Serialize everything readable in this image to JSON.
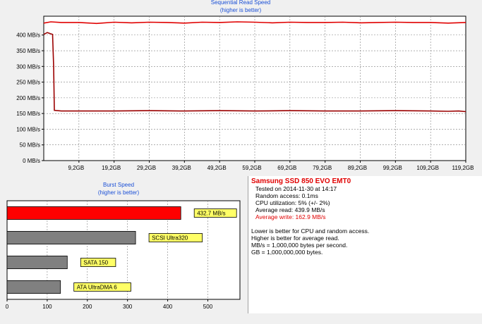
{
  "read_chart": {
    "title_line1": "Sequential Read Speed",
    "title_line2": "(higher is better)"
  },
  "burst_chart": {
    "title_line1": "Burst Speed",
    "title_line2": "(higher is better)"
  },
  "info": {
    "drive_name": "Samsung SSD 850 EVO EMT0",
    "tested_on": "Tested on 2014-11-30 at 14:17",
    "random_access": "Random access: 0.1ms",
    "cpu_utilization": "CPU utilization: 5% (+/- 2%)",
    "average_read": "Average read: 439.9 MB/s",
    "average_write": "Average write: 162.9 MB/s",
    "note1": "Lower is better for CPU and random access.",
    "note2": "Higher is better for average read.",
    "note3": "MB/s = 1,000,000 bytes per second.",
    "note4": "GB = 1,000,000,000 bytes."
  },
  "colors": {
    "read_line": "#e00000",
    "write_line": "#9b0000",
    "burst_bar": "#ff0000",
    "ref_bar": "#808080",
    "label_bg": "#ffff66"
  },
  "chart_data": [
    {
      "type": "line",
      "title": "Sequential Read Speed",
      "subtitle": "(higher is better)",
      "y_tick_labels": [
        "0 MB/s",
        "50 MB/s",
        "100 MB/s",
        "150 MB/s",
        "200 MB/s",
        "250 MB/s",
        "300 MB/s",
        "350 MB/s",
        "400 MB/s"
      ],
      "x_tick_labels": [
        "9,2GB",
        "19,2GB",
        "29,2GB",
        "39,2GB",
        "49,2GB",
        "59,2GB",
        "69,2GB",
        "79,2GB",
        "89,2GB",
        "99,2GB",
        "109,2GB",
        "119,2GB"
      ],
      "xlim": [
        0,
        120
      ],
      "ylim": [
        0,
        460
      ],
      "grid": true,
      "series": [
        {
          "color": "#e00000",
          "x": [
            0,
            2,
            5,
            10,
            15,
            20,
            25,
            30,
            35,
            40,
            45,
            50,
            55,
            60,
            65,
            70,
            75,
            80,
            85,
            90,
            95,
            100,
            105,
            110,
            115,
            120
          ],
          "y": [
            438,
            442,
            440,
            440,
            437,
            441,
            439,
            441,
            440,
            438,
            441,
            440,
            442,
            441,
            439,
            441,
            440,
            440,
            441,
            439,
            440,
            441,
            440,
            440,
            438,
            440
          ]
        },
        {
          "color": "#9b0000",
          "x": [
            0,
            1,
            2,
            2.5,
            2.8,
            3,
            5,
            10,
            20,
            30,
            40,
            50,
            60,
            70,
            80,
            90,
            100,
            110,
            115,
            118,
            120
          ],
          "y": [
            402,
            408,
            404,
            402,
            300,
            160,
            158,
            158,
            158,
            159,
            158,
            159,
            158,
            159,
            158,
            158,
            159,
            158,
            157,
            158,
            156
          ]
        }
      ]
    },
    {
      "type": "bar",
      "title": "Burst Speed",
      "subtitle": "(higher is better)",
      "orientation": "horizontal",
      "categories": [
        "432.7 MB/s",
        "SCSI Ultra320",
        "SATA 150",
        "ATA UltraDMA 6"
      ],
      "values": [
        432.7,
        320,
        150,
        133
      ],
      "x_tick_labels": [
        "0",
        "100",
        "200",
        "300",
        "400",
        "500"
      ],
      "xlim": [
        0,
        580
      ],
      "grid": true
    }
  ]
}
